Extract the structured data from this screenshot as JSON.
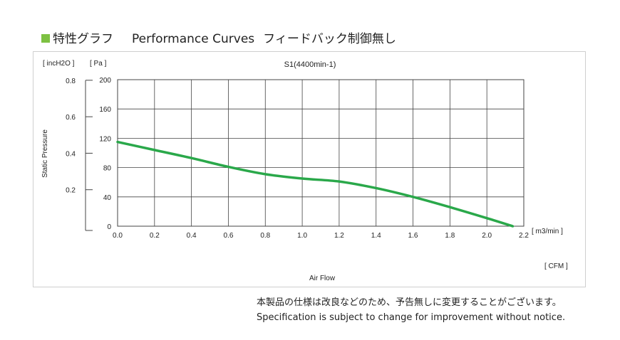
{
  "header": {
    "title_jp": "特性グラフ",
    "title_en": "Performance Curves",
    "subtitle_jp": "フィードバック制御無し"
  },
  "chart_data": {
    "type": "line",
    "title": "S1(4400min-1)",
    "xlabel": "Air Flow",
    "ylabel": "Static Pressure",
    "x_unit": "[ m3/min ]",
    "x_unit_secondary": "[ CFM ]",
    "y_unit": "[ Pa ]",
    "y_unit_secondary": "[ incH2O ]",
    "xlim": [
      0,
      2.2
    ],
    "ylim": [
      0,
      200
    ],
    "x_ticks": [
      "0.0",
      "0.2",
      "0.4",
      "0.6",
      "0.8",
      "1.0",
      "1.2",
      "1.4",
      "1.6",
      "1.8",
      "2.0",
      "2.2"
    ],
    "y_ticks": [
      "0",
      "40",
      "80",
      "120",
      "160",
      "200"
    ],
    "y2_ticks": [
      {
        "label": "0.2",
        "pa": 49.8
      },
      {
        "label": "0.4",
        "pa": 99.6
      },
      {
        "label": "0.6",
        "pa": 149.4
      },
      {
        "label": "0.8",
        "pa": 199.2
      }
    ],
    "grid": true,
    "line_color": "#2aa84a",
    "series": [
      {
        "x": [
          0.0,
          0.2,
          0.4,
          0.6,
          0.8,
          1.0,
          1.2,
          1.4,
          1.6,
          1.8,
          2.0,
          2.14
        ],
        "y": [
          115,
          104,
          93,
          81,
          71,
          65,
          61,
          52,
          40,
          26,
          11,
          0
        ]
      }
    ]
  },
  "notes": {
    "line1": "本製品の仕様は改良などのため、予告無しに変更することがございます。",
    "line2": "Specification is subject to change for improvement without notice."
  }
}
